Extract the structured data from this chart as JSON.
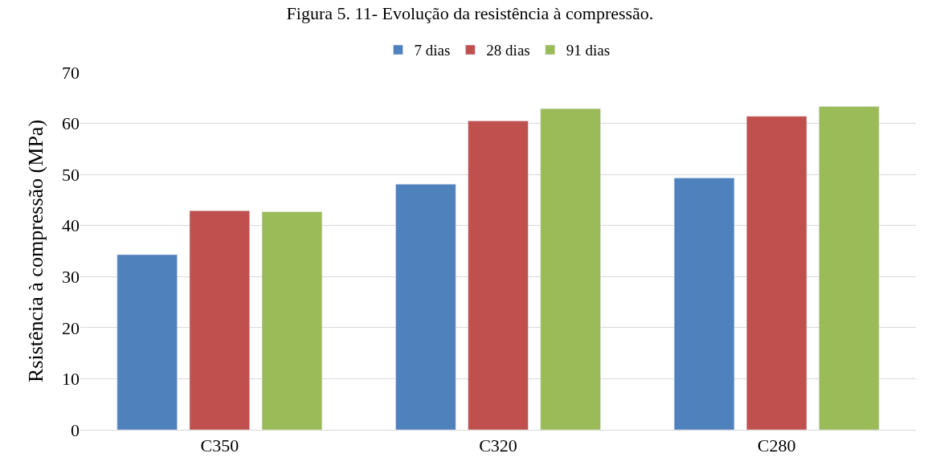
{
  "chart_data": {
    "type": "bar",
    "title": "Figura 5. 11- Evolução da resistência à compressão.",
    "ylabel": "Rsistência à compressão (MPa)",
    "categories": [
      "C350",
      "C320",
      "C280"
    ],
    "series": [
      {
        "name": "7 dias",
        "color": "#4f81bd",
        "values": [
          34.3,
          48.1,
          49.3
        ]
      },
      {
        "name": "28 dias",
        "color": "#c0504d",
        "values": [
          42.9,
          60.5,
          61.4
        ]
      },
      {
        "name": "91 dias",
        "color": "#9bbb59",
        "values": [
          42.7,
          62.9,
          63.3
        ]
      }
    ],
    "ylim": [
      0,
      70
    ],
    "yticks": [
      0,
      10,
      20,
      30,
      40,
      50,
      60,
      70
    ],
    "grid": "y",
    "legend": "top"
  }
}
